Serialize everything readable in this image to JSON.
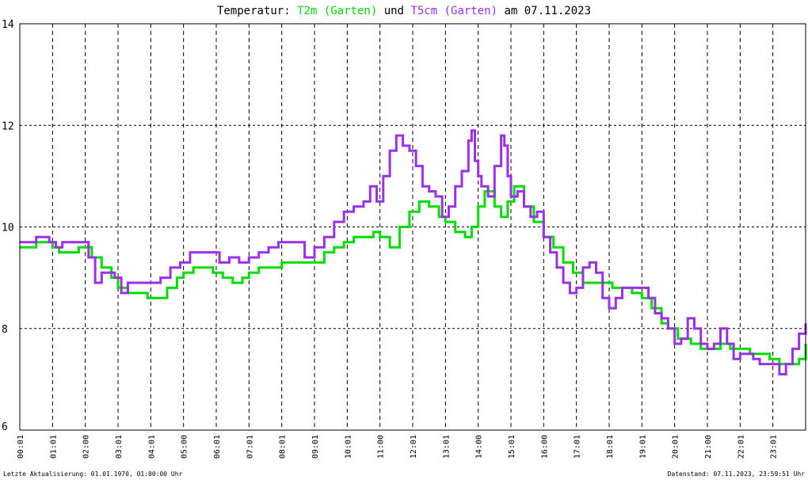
{
  "title": {
    "prefix": "Temperatur:",
    "series1": "T2m (Garten)",
    "middle": "und",
    "series2": "T5cm (Garten)",
    "suffix": "am 07.11.2023"
  },
  "footer": {
    "left": "Letzte Aktualisierung: 01.01.1970, 01:00:00 Uhr",
    "right": "Datenstand: 07.11.2023, 23:59:51 Uhr"
  },
  "colors": {
    "series1": "#00dd00",
    "series2": "#9a30e8",
    "grid": "#000000",
    "frame": "#000000"
  },
  "chart_data": {
    "type": "line",
    "title": "Temperatur: T2m (Garten) und T5cm (Garten) am 07.11.2023",
    "xlabel": "",
    "ylabel": "",
    "ylim": [
      6,
      14
    ],
    "xlim": [
      0,
      24
    ],
    "yticks": [
      "6",
      "8",
      "10",
      "12",
      "14"
    ],
    "xticks": [
      "00:01",
      "01:01",
      "02:00",
      "03:01",
      "04:01",
      "05:00",
      "06:01",
      "07:01",
      "08:01",
      "09:01",
      "10:01",
      "11:00",
      "12:01",
      "13:01",
      "14:00",
      "15:01",
      "16:00",
      "17:01",
      "18:01",
      "19:01",
      "20:01",
      "21:00",
      "22:01",
      "23:01"
    ],
    "grid": "dashed",
    "series": [
      {
        "name": "T2m (Garten)",
        "color": "#00dd00",
        "x": [
          0,
          0.3,
          0.5,
          0.8,
          1.0,
          1.2,
          1.5,
          1.8,
          2.0,
          2.2,
          2.5,
          2.8,
          3.0,
          3.3,
          3.6,
          3.9,
          4.2,
          4.5,
          4.8,
          5.0,
          5.3,
          5.6,
          5.9,
          6.2,
          6.5,
          6.8,
          7.0,
          7.3,
          7.6,
          8.0,
          8.5,
          9.0,
          9.3,
          9.6,
          9.9,
          10.2,
          10.5,
          10.8,
          11.0,
          11.3,
          11.6,
          11.9,
          12.2,
          12.5,
          12.8,
          13.0,
          13.3,
          13.6,
          13.8,
          14.0,
          14.2,
          14.5,
          14.7,
          14.9,
          15.1,
          15.4,
          15.7,
          16.0,
          16.3,
          16.6,
          16.9,
          17.2,
          17.5,
          17.8,
          18.1,
          18.4,
          18.7,
          19.0,
          19.3,
          19.6,
          19.8,
          20.1,
          20.5,
          20.8,
          21.1,
          21.4,
          21.7,
          22.0,
          22.3,
          22.6,
          22.9,
          23.2,
          23.5,
          23.8,
          24.0
        ],
        "y": [
          9.6,
          9.6,
          9.7,
          9.7,
          9.6,
          9.5,
          9.5,
          9.6,
          9.6,
          9.4,
          9.2,
          9.0,
          8.8,
          8.7,
          8.7,
          8.6,
          8.6,
          8.8,
          9.0,
          9.1,
          9.2,
          9.2,
          9.1,
          9.0,
          8.9,
          9.0,
          9.1,
          9.2,
          9.2,
          9.3,
          9.3,
          9.3,
          9.5,
          9.6,
          9.7,
          9.8,
          9.8,
          9.9,
          9.8,
          9.6,
          10.0,
          10.3,
          10.5,
          10.4,
          10.2,
          10.1,
          9.9,
          9.8,
          10.0,
          10.4,
          10.7,
          10.4,
          10.2,
          10.5,
          10.8,
          10.4,
          10.1,
          9.8,
          9.6,
          9.3,
          9.1,
          8.9,
          8.9,
          8.9,
          8.8,
          8.8,
          8.7,
          8.6,
          8.4,
          8.1,
          8.0,
          7.8,
          7.7,
          7.6,
          7.6,
          7.7,
          7.6,
          7.6,
          7.5,
          7.5,
          7.4,
          7.3,
          7.3,
          7.4,
          7.7
        ]
      },
      {
        "name": "T5cm (Garten)",
        "color": "#9a30e8",
        "x": [
          0,
          0.3,
          0.5,
          0.7,
          0.9,
          1.1,
          1.3,
          1.6,
          1.9,
          2.1,
          2.3,
          2.5,
          2.7,
          2.9,
          3.1,
          3.3,
          3.5,
          3.7,
          3.9,
          4.1,
          4.3,
          4.6,
          4.9,
          5.2,
          5.5,
          5.8,
          6.1,
          6.4,
          6.7,
          7.0,
          7.3,
          7.6,
          7.9,
          8.2,
          8.5,
          8.7,
          9.0,
          9.3,
          9.6,
          9.9,
          10.2,
          10.5,
          10.7,
          10.9,
          11.1,
          11.3,
          11.5,
          11.7,
          11.9,
          12.1,
          12.3,
          12.5,
          12.7,
          12.9,
          13.1,
          13.3,
          13.5,
          13.7,
          13.8,
          13.9,
          14.0,
          14.1,
          14.3,
          14.5,
          14.7,
          14.8,
          14.9,
          15.0,
          15.2,
          15.4,
          15.6,
          15.8,
          16.0,
          16.2,
          16.4,
          16.6,
          16.8,
          17.0,
          17.2,
          17.4,
          17.6,
          17.8,
          18.0,
          18.2,
          18.4,
          18.6,
          18.8,
          19.0,
          19.2,
          19.4,
          19.6,
          19.8,
          20.0,
          20.2,
          20.4,
          20.6,
          20.8,
          21.0,
          21.2,
          21.4,
          21.6,
          21.8,
          22.0,
          22.2,
          22.4,
          22.6,
          22.8,
          23.0,
          23.2,
          23.4,
          23.6,
          23.8,
          24.0
        ],
        "y": [
          9.7,
          9.7,
          9.8,
          9.8,
          9.7,
          9.6,
          9.7,
          9.7,
          9.7,
          9.4,
          8.9,
          9.1,
          9.1,
          9.0,
          8.7,
          8.9,
          8.9,
          8.9,
          8.9,
          8.9,
          9.0,
          9.2,
          9.3,
          9.5,
          9.5,
          9.5,
          9.3,
          9.4,
          9.3,
          9.4,
          9.5,
          9.6,
          9.7,
          9.7,
          9.7,
          9.4,
          9.6,
          9.8,
          10.1,
          10.3,
          10.4,
          10.5,
          10.8,
          10.5,
          11.0,
          11.5,
          11.8,
          11.6,
          11.5,
          11.2,
          10.8,
          10.7,
          10.6,
          10.2,
          10.4,
          10.8,
          11.1,
          11.7,
          11.9,
          11.3,
          11.0,
          10.8,
          10.6,
          11.2,
          11.8,
          11.6,
          11.0,
          10.6,
          10.7,
          10.4,
          10.2,
          10.3,
          9.8,
          9.5,
          9.2,
          8.9,
          8.7,
          8.8,
          9.2,
          9.3,
          9.1,
          8.6,
          8.4,
          8.6,
          8.8,
          8.8,
          8.8,
          8.8,
          8.6,
          8.3,
          8.2,
          8.0,
          7.7,
          7.8,
          8.2,
          8.0,
          7.7,
          7.6,
          7.7,
          8.0,
          7.7,
          7.4,
          7.5,
          7.5,
          7.4,
          7.3,
          7.3,
          7.3,
          7.1,
          7.3,
          7.6,
          7.9,
          8.1
        ]
      }
    ]
  }
}
